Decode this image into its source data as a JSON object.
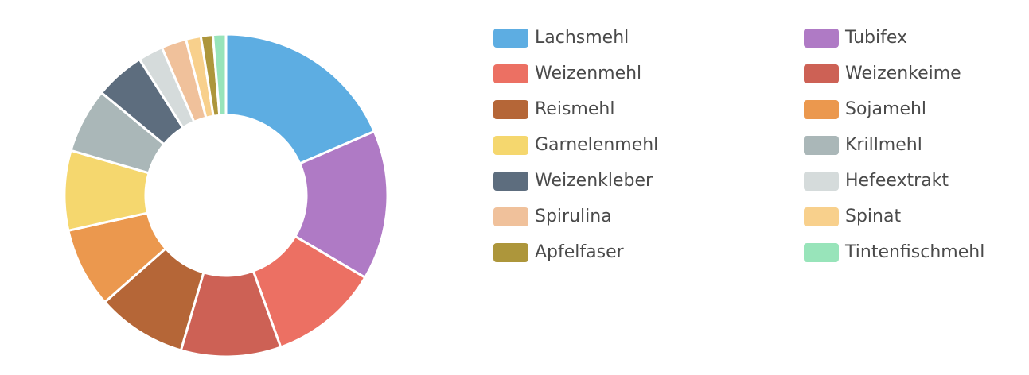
{
  "chart_data": {
    "type": "pie",
    "variant": "donut",
    "categories": [
      "Lachsmehl",
      "Tubifex",
      "Weizenmehl",
      "Weizenkeime",
      "Reismehl",
      "Sojamehl",
      "Garnelenmehl",
      "Krillmehl",
      "Weizenkleber",
      "Hefeextrakt",
      "Spirulina",
      "Spinat",
      "Apfelfaser",
      "Tintenfischmehl"
    ],
    "values": [
      18.5,
      15.0,
      11.0,
      10.0,
      9.0,
      8.0,
      8.0,
      6.5,
      5.0,
      2.5,
      2.5,
      1.5,
      1.2,
      1.3
    ],
    "colors": [
      "#5dade2",
      "#af7ac5",
      "#ec7063",
      "#cd6155",
      "#b56637",
      "#eb984e",
      "#f5d76e",
      "#aab7b8",
      "#5d6d7e",
      "#d5dbdb",
      "#f0c19b",
      "#f8d08c",
      "#ad963b",
      "#98e4ba"
    ],
    "legend_position": "right"
  }
}
